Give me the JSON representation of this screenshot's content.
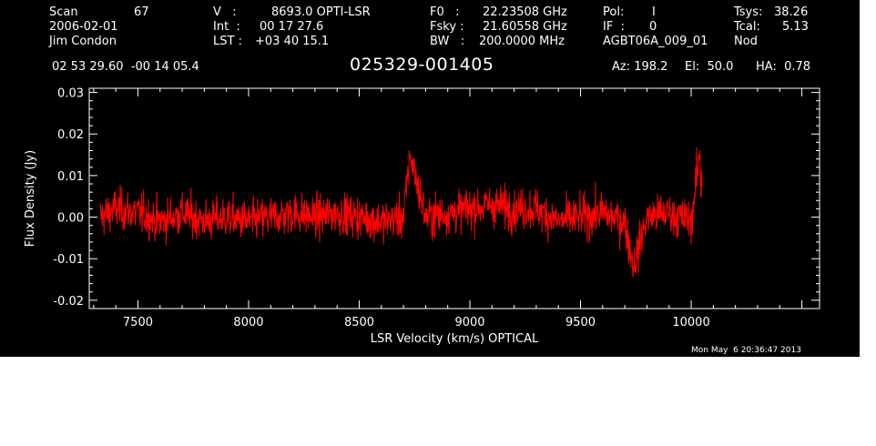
{
  "header": {
    "scan_label": "Scan",
    "scan_value": "67",
    "date": "2006-02-01",
    "observer": "Jim Condon",
    "v_label": "V   :",
    "v_value": "8693.0 OPTI-LSR",
    "int_label": "Int  :",
    "int_value": "00 17 27.6",
    "lst_label": "LST :",
    "lst_value": "+03 40 15.1",
    "f0_label": "F0   :",
    "f0_value": "22.23508 GHz",
    "fsky_label": "Fsky :",
    "fsky_value": "21.60558 GHz",
    "bw_label": "BW   :",
    "bw_value": "200.0000 MHz",
    "pol_label": "Pol:",
    "pol_value": "I",
    "if_label": "IF  :",
    "if_value": "0",
    "project": "AGBT06A_009_01",
    "tsys_label": "Tsys:",
    "tsys_value": "38.26",
    "tcal_label": "Tcal:",
    "tcal_value": "5.13",
    "mode": "Nod",
    "coords": "02 53 29.60  -00 14 05.4",
    "source": "025329-001405",
    "az": "Az: 198.2",
    "el": "El:  50.0",
    "ha": "HA:  0.78"
  },
  "timestamp": "Mon May  6 20:36:47 2013",
  "colors": {
    "background": "#000000",
    "axes": "#ffffff",
    "trace": "#ff0000"
  },
  "chart_data": {
    "type": "line",
    "title": "025329-001405",
    "xlabel": "LSR Velocity (km/s) OPTICAL",
    "ylabel": "Flux Density (Jy)",
    "xlim": [
      7280,
      10580
    ],
    "ylim": [
      -0.022,
      0.031
    ],
    "x_ticks": [
      7500,
      8000,
      8500,
      9000,
      9500,
      10000
    ],
    "x_tick_labels": [
      "7500",
      "8000",
      "8500",
      "9000",
      "9500",
      "10000"
    ],
    "y_ticks": [
      -0.02,
      -0.01,
      0.0,
      0.01,
      0.02,
      0.03
    ],
    "y_tick_labels": [
      "-0.02",
      "-0.01",
      "0.00",
      "0.01",
      "0.02",
      "0.03"
    ],
    "grid": false,
    "series": [
      {
        "color": "#ff0000",
        "x": [
          7330,
          7400,
          7500,
          7600,
          7700,
          7800,
          7900,
          8000,
          8100,
          8200,
          8300,
          8400,
          8500,
          8600,
          8700,
          8730,
          8800,
          8900,
          9000,
          9100,
          9200,
          9300,
          9400,
          9500,
          9600,
          9700,
          9740,
          9800,
          9900,
          10000,
          10050
        ],
        "y": [
          0.0,
          0.002,
          0.001,
          -0.001,
          0.001,
          -0.001,
          0.0,
          -0.001,
          0.0,
          0.001,
          0.0,
          0.001,
          0.0,
          -0.001,
          0.0,
          0.015,
          0.0,
          0.001,
          0.002,
          0.003,
          0.002,
          0.002,
          -0.001,
          0.0,
          0.001,
          -0.001,
          -0.012,
          0.0,
          0.001,
          -0.001,
          0.02
        ],
        "noise_rms": 0.0045
      }
    ]
  }
}
